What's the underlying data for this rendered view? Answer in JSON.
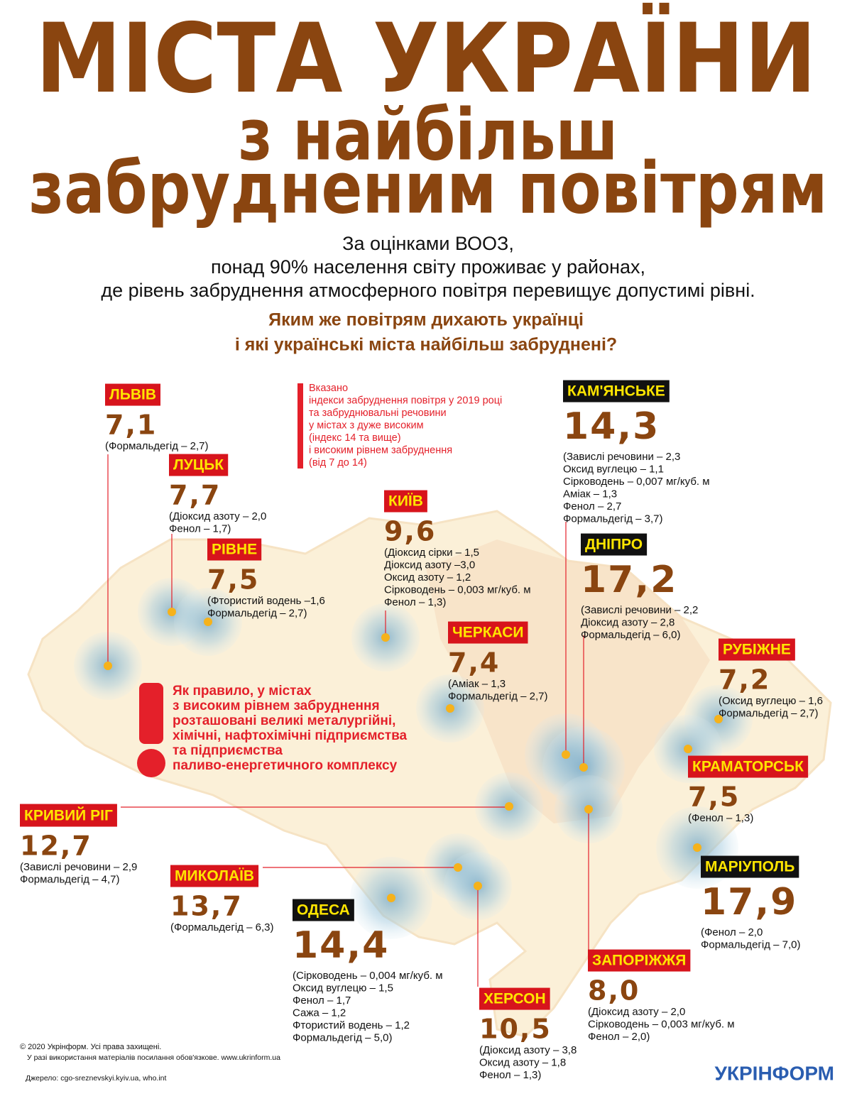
{
  "header": {
    "title": [
      "МІСТА УКРАЇНИ",
      "з найбільш",
      "забрудненим повітрям"
    ],
    "subtitle": [
      "За оцінками ВООЗ,",
      "понад 90% населення світу проживає у районах,",
      "де рівень забруднення атмосферного повітря перевищує допустимі рівні."
    ],
    "question": [
      "Яким же повітрям дихають українці",
      "і які українські міста найбільш забруднені?"
    ]
  },
  "note": [
    "Вказано",
    "індекси забруднення повітря у 2019 році",
    "та забруднювальні речовини",
    "у містах з дуже високим",
    "(індекс 14 та вище)",
    "і високим рівнем забруднення",
    "(від 7 до 14)"
  ],
  "warning": [
    "Як правило, у містах",
    "з високим рівнем забруднення",
    "розташовані великі металургійні,",
    "хімічні, нафтохімічні підприємства",
    "та підприємства",
    "паливо-енергетичного комплексу"
  ],
  "cities": [
    {
      "name": "ЛЬВІВ",
      "index": "7,1",
      "details": [
        "(Формальдегід – 2,7)"
      ]
    },
    {
      "name": "ЛУЦЬК",
      "index": "7,7",
      "details": [
        "(Діоксид азоту – 2,0",
        "Фенол – 1,7)"
      ]
    },
    {
      "name": "РІВНЕ",
      "index": "7,5",
      "details": [
        "(Фтористий водень –1,6",
        "Формальдегід – 2,7)"
      ]
    },
    {
      "name": "КИЇВ",
      "index": "9,6",
      "details": [
        "(Діоксид сірки – 1,5",
        "Діоксид азоту –3,0",
        "Оксид азоту – 1,2",
        "Сірководень – 0,003 мг/куб. м",
        "Фенол – 1,3)"
      ]
    },
    {
      "name": "ЧЕРКАСИ",
      "index": "7,4",
      "details": [
        "(Аміак – 1,3",
        "Формальдегід – 2,7)"
      ]
    },
    {
      "name": "КАМ'ЯНСЬКЕ",
      "index": "14,3",
      "details": [
        "(Завислі речовини – 2,3",
        "Оксид вуглецю – 1,1",
        "Сірководень – 0,007 мг/куб. м",
        "Аміак – 1,3",
        "Фенол – 2,7",
        "Формальдегід – 3,7)"
      ]
    },
    {
      "name": "ДНІПРО",
      "index": "17,2",
      "details": [
        "(Завислі речовини – 2,2",
        "Діоксид азоту – 2,8",
        "Формальдегід – 6,0)"
      ]
    },
    {
      "name": "РУБІЖНЕ",
      "index": "7,2",
      "details": [
        "(Оксид вуглецю – 1,6",
        "Формальдегід – 2,7)"
      ]
    },
    {
      "name": "КРАМАТОРСЬК",
      "index": "7,5",
      "details": [
        "(Фенол – 1,3)"
      ]
    },
    {
      "name": "МАРІУПОЛЬ",
      "index": "17,9",
      "details": [
        "(Фенол – 2,0",
        "Формальдегід – 7,0)"
      ]
    },
    {
      "name": "КРИВИЙ РІГ",
      "index": "12,7",
      "details": [
        "(Завислі речовини – 2,9",
        "Формальдегід – 4,7)"
      ]
    },
    {
      "name": "МИКОЛАЇВ",
      "index": "13,7",
      "details": [
        "(Формальдегід – 6,3)"
      ]
    },
    {
      "name": "ОДЕСА",
      "index": "14,4",
      "details": [
        "(Сірководень – 0,004 мг/куб. м",
        "Оксид вуглецю – 1,5",
        "Фенол – 1,7",
        "Сажа – 1,2",
        "Фтористий водень – 1,2",
        "Формальдегід – 5,0)"
      ]
    },
    {
      "name": "ХЕРСОН",
      "index": "10,5",
      "details": [
        "(Діоксид азоту – 3,8",
        "Оксид азоту – 1,8",
        "Фенол – 1,3)"
      ]
    },
    {
      "name": "ЗАПОРІЖЖЯ",
      "index": "8,0",
      "details": [
        "(Діоксид азоту – 2,0",
        "Сірководень – 0,003 мг/куб. м",
        "Фенол – 2,0)"
      ]
    }
  ],
  "footer": {
    "copyright": [
      "© 2020 Укрінформ. Усі права захищені.",
      "У разі використання матеріалів посилання обов'язкове. www.ukrinform.ua"
    ],
    "source": "Джерело: cgo-sreznevskyi.kyiv.ua, who.int",
    "logo": "УКРІНФОРМ"
  }
}
